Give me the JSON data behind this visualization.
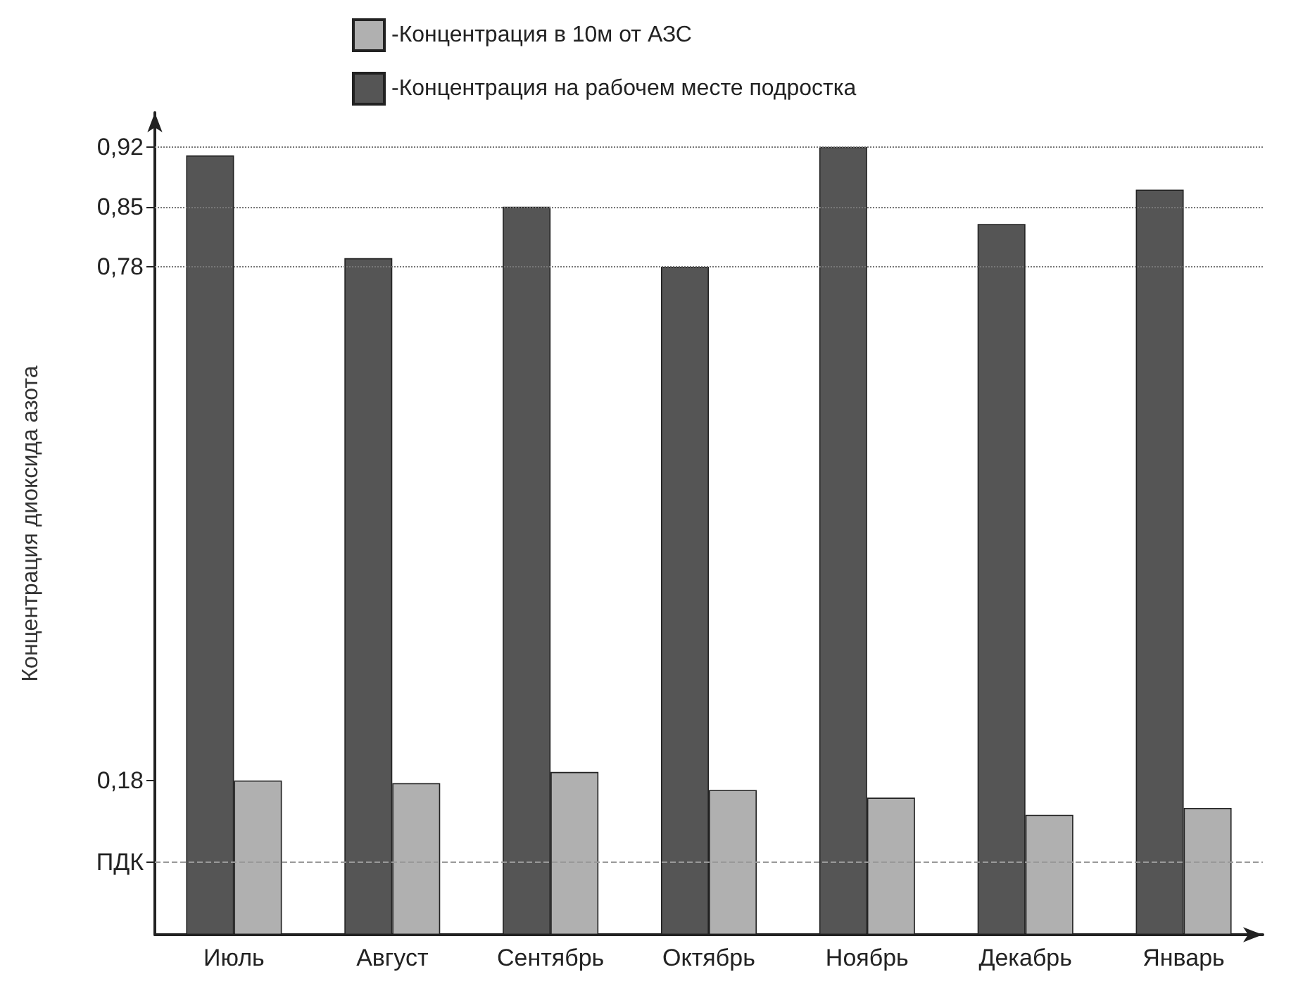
{
  "chart_data": {
    "type": "bar",
    "ylabel": "Концентрация диоксида азота",
    "categories": [
      "Июль",
      "Август",
      "Сентябрь",
      "Октябрь",
      "Ноябрь",
      "Декабрь",
      "Январь"
    ],
    "series": [
      {
        "name": "-Концентрация на рабочем месте подростка",
        "color": "#555555",
        "values": [
          0.91,
          0.79,
          0.85,
          0.78,
          0.92,
          0.83,
          0.87
        ]
      },
      {
        "name": "-Концентрация в 10м от АЗС",
        "color": "#b0b0b0",
        "values": [
          0.18,
          0.177,
          0.19,
          0.169,
          0.16,
          0.14,
          0.148
        ]
      }
    ],
    "ylim": [
      0,
      0.96
    ],
    "yticks": [
      {
        "value": 0.085,
        "label": "ПДК"
      },
      "0,18",
      "0,78",
      "0,85",
      "0,92"
    ],
    "ref_lines": [
      {
        "axis": "y",
        "value": 0.085,
        "color": "#999999",
        "line_style": "dashed"
      },
      {
        "axis": "y",
        "value": 0.78,
        "color": "#777777",
        "line_style": "dotted"
      },
      {
        "axis": "y",
        "value": 0.85,
        "color": "#777777",
        "line_style": "dotted"
      },
      {
        "axis": "y",
        "value": 0.92,
        "color": "#777777",
        "line_style": "dotted"
      }
    ],
    "legend": "top",
    "grid": false
  }
}
